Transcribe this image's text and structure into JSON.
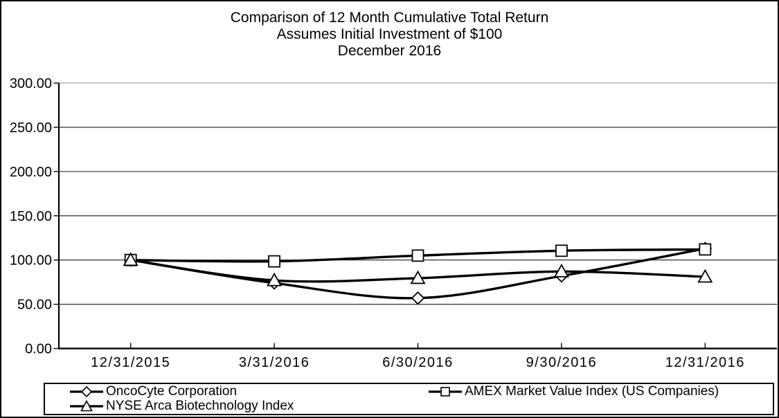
{
  "title": {
    "line1": "Comparison of 12 Month Cumulative Total Return",
    "line2": "Assumes Initial Investment of $100",
    "line3": "December 2016"
  },
  "chart_data": {
    "type": "line",
    "title": "Comparison of 12 Month Cumulative Total Return",
    "subtitle": "Assumes Initial Investment of $100",
    "subtitle2": "December 2016",
    "categories": [
      "12/31/2015",
      "3/31/2016",
      "6/30/2016",
      "9/30/2016",
      "12/31/2016"
    ],
    "series": [
      {
        "name": "OncoCyte Corporation",
        "marker": "diamond",
        "values": [
          100,
          74,
          57,
          82,
          113
        ]
      },
      {
        "name": "AMEX Market Value Index (US Companies)",
        "marker": "square",
        "values": [
          100,
          98.5,
          105,
          110.5,
          112
        ]
      },
      {
        "name": "NYSE Arca Biotechnology Index",
        "marker": "triangle",
        "values": [
          100,
          77,
          79.5,
          87,
          81
        ]
      }
    ],
    "xlabel": "",
    "ylabel": "",
    "ylim": [
      0,
      300
    ],
    "ytick_step": 50,
    "ytick_labels": [
      "0.00",
      "50.00",
      "100.00",
      "150.00",
      "200.00",
      "250.00",
      "300.00"
    ],
    "grid": true,
    "line_smoothing": true,
    "legend_position": "bottom",
    "colors": {
      "line": "#000000",
      "marker_fill": "#ffffff",
      "grid": "#1a1a1a",
      "top_grid": "#8c8c8c",
      "background": "#ffffff"
    }
  }
}
